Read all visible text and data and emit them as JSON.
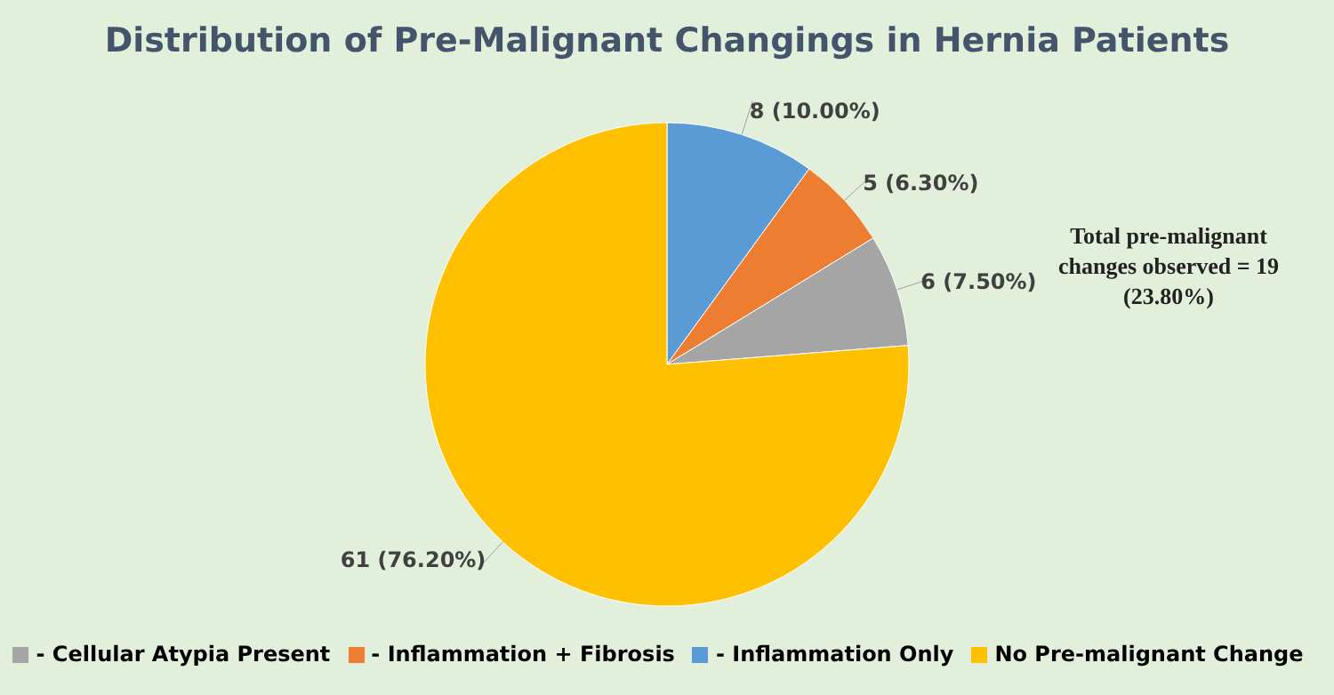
{
  "chart_data": {
    "type": "pie",
    "title": "Distribution of Pre-Malignant Changings in Hernia Patients",
    "categories": [
      "- Inflammation Only",
      "- Inflammation + Fibrosis",
      "- Cellular Atypia Present",
      "No Pre-malignant Change"
    ],
    "values": [
      8,
      5,
      6,
      61
    ],
    "value_labels": [
      "8 (10.00%)",
      "5 (6.30%)",
      "6 (7.50%)",
      "61 (76.20%)"
    ],
    "colors": [
      "#5b9bd5",
      "#ed7d31",
      "#a5a5a5",
      "#ffc000"
    ],
    "annotations": [
      "Total  pre-malignant changes observed = 19 (23.80%)"
    ],
    "legend": "bottom"
  }
}
